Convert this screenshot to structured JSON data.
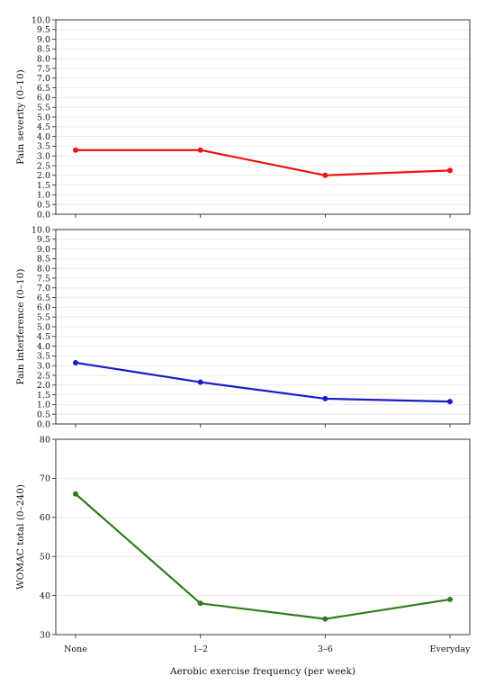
{
  "chart_data": [
    {
      "type": "line",
      "categories": [
        "None",
        "1–2",
        "3–6",
        "Everyday"
      ],
      "series": [
        {
          "values": [
            3.3,
            3.3,
            2.0,
            2.25
          ],
          "color": "#ee1111"
        }
      ],
      "ylabel": "Pain severity (0–10)",
      "xlabel": "",
      "ylim": [
        0,
        10
      ],
      "yticks": [
        "0.0",
        "0.5",
        "1.0",
        "1.5",
        "2.0",
        "2.5",
        "3.0",
        "3.5",
        "4.0",
        "4.5",
        "5.0",
        "5.5",
        "6.0",
        "6.5",
        "7.0",
        "7.5",
        "8.0",
        "8.5",
        "9.0",
        "9.5",
        "10.0"
      ],
      "grid": true,
      "show_xticklabels": false
    },
    {
      "type": "line",
      "categories": [
        "None",
        "1–2",
        "3–6",
        "Everyday"
      ],
      "series": [
        {
          "values": [
            3.15,
            2.15,
            1.3,
            1.15
          ],
          "color": "#1a1acc"
        }
      ],
      "ylabel": "Pain interference (0–10)",
      "xlabel": "",
      "ylim": [
        0,
        10
      ],
      "yticks": [
        "0.0",
        "0.5",
        "1.0",
        "1.5",
        "2.0",
        "2.5",
        "3.0",
        "3.5",
        "4.0",
        "4.5",
        "5.0",
        "5.5",
        "6.0",
        "6.5",
        "7.0",
        "7.5",
        "8.0",
        "8.5",
        "9.0",
        "9.5",
        "10.0"
      ],
      "grid": true,
      "show_xticklabels": false
    },
    {
      "type": "line",
      "categories": [
        "None",
        "1–2",
        "3–6",
        "Everyday"
      ],
      "series": [
        {
          "values": [
            66,
            38,
            34,
            39
          ],
          "color": "#2e7d1a"
        }
      ],
      "ylabel": "WOMAC total (0–240)",
      "xlabel": "Aerobic exercise frequency (per week)",
      "ylim": [
        30,
        80
      ],
      "yticks": [
        "30",
        "40",
        "50",
        "60",
        "70",
        "80"
      ],
      "grid": true,
      "show_xticklabels": true
    }
  ]
}
